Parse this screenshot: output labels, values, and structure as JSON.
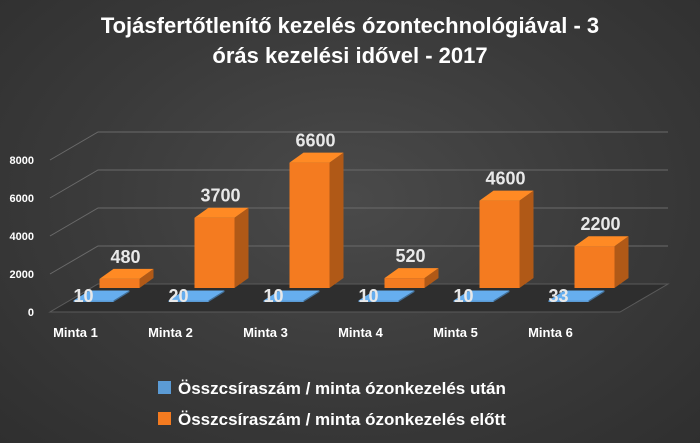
{
  "chart_data": {
    "type": "bar",
    "title_lines": [
      "Tojásfertőtlenítő kezelés ózontechnológiával  - 3",
      "órás kezelési idővel - 2017"
    ],
    "categories": [
      "Minta 1",
      "Minta 2",
      "Minta 3",
      "Minta 4",
      "Minta 5",
      "Minta 6"
    ],
    "yticks": [
      "0",
      "2000",
      "4000",
      "6000",
      "8000"
    ],
    "ylim": [
      0,
      8000
    ],
    "series": [
      {
        "name": "Összcsíraszám / minta ózonkezelés után",
        "values": [
          10,
          20,
          10,
          10,
          10,
          33
        ],
        "labels": [
          "10",
          "20",
          "10",
          "10",
          "10",
          "33"
        ],
        "color": "#5b9bd5"
      },
      {
        "name": "Összcsíraszám / minta ózonkezelés előtt",
        "values": [
          480,
          3700,
          6600,
          520,
          4600,
          2200
        ],
        "labels": [
          "480",
          "3700",
          "6600",
          "520",
          "4600",
          "2200"
        ],
        "color": "#f47b20"
      }
    ],
    "legend_position": "bottom",
    "grid": true,
    "style": "3d-column"
  }
}
